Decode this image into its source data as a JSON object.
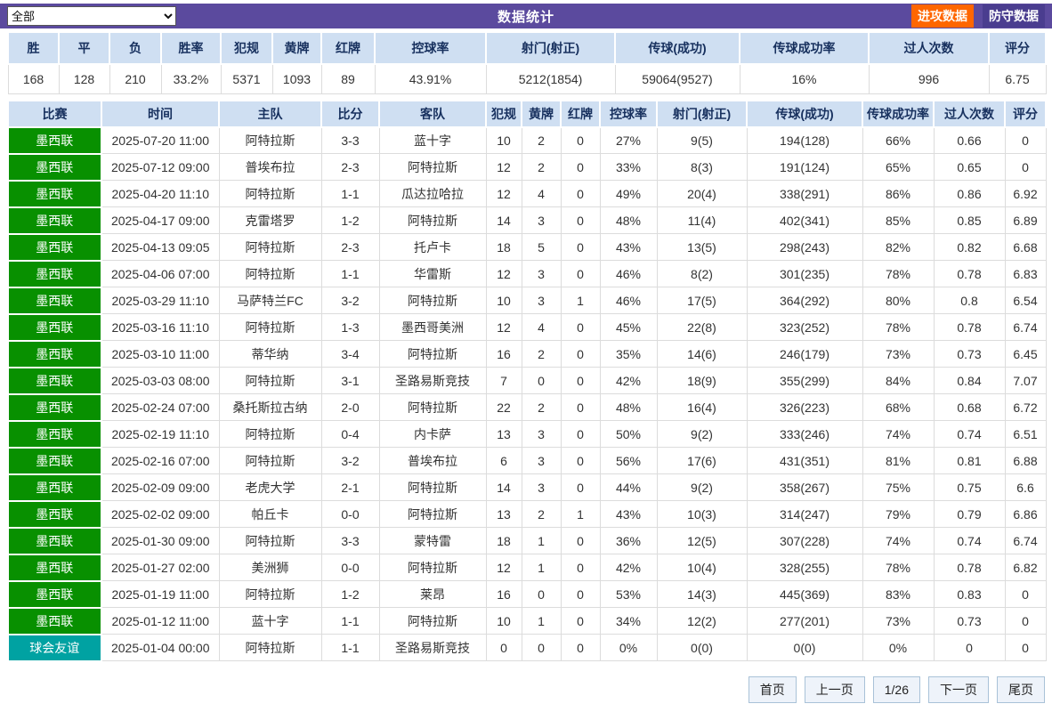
{
  "topbar": {
    "filter_value": "全部",
    "title": "数据统计",
    "attack_button": "进攻数据",
    "defense_button": "防守数据"
  },
  "summary": {
    "headers": [
      "胜",
      "平",
      "负",
      "胜率",
      "犯规",
      "黄牌",
      "红牌",
      "控球率",
      "射门(射正)",
      "传球(成功)",
      "传球成功率",
      "过人次数",
      "评分"
    ],
    "values": [
      "168",
      "128",
      "210",
      "33.2%",
      "5371",
      "1093",
      "89",
      "43.91%",
      "5212(1854)",
      "59064(9527)",
      "16%",
      "996",
      "6.75"
    ]
  },
  "table": {
    "headers": [
      "比赛",
      "时间",
      "主队",
      "比分",
      "客队",
      "犯规",
      "黄牌",
      "红牌",
      "控球率",
      "射门(射正)",
      "传球(成功)",
      "传球成功率",
      "过人次数",
      "评分"
    ],
    "rows": [
      {
        "league": "墨西联",
        "league_color": "#089000",
        "cells": [
          "2025-07-20 11:00",
          "阿特拉斯",
          "3-3",
          "蓝十字",
          "10",
          "2",
          "0",
          "27%",
          "9(5)",
          "194(128)",
          "66%",
          "0.66",
          "0"
        ]
      },
      {
        "league": "墨西联",
        "league_color": "#089000",
        "cells": [
          "2025-07-12 09:00",
          "普埃布拉",
          "2-3",
          "阿特拉斯",
          "12",
          "2",
          "0",
          "33%",
          "8(3)",
          "191(124)",
          "65%",
          "0.65",
          "0"
        ]
      },
      {
        "league": "墨西联",
        "league_color": "#089000",
        "cells": [
          "2025-04-20 11:10",
          "阿特拉斯",
          "1-1",
          "瓜达拉哈拉",
          "12",
          "4",
          "0",
          "49%",
          "20(4)",
          "338(291)",
          "86%",
          "0.86",
          "6.92"
        ]
      },
      {
        "league": "墨西联",
        "league_color": "#089000",
        "cells": [
          "2025-04-17 09:00",
          "克雷塔罗",
          "1-2",
          "阿特拉斯",
          "14",
          "3",
          "0",
          "48%",
          "11(4)",
          "402(341)",
          "85%",
          "0.85",
          "6.89"
        ]
      },
      {
        "league": "墨西联",
        "league_color": "#089000",
        "cells": [
          "2025-04-13 09:05",
          "阿特拉斯",
          "2-3",
          "托卢卡",
          "18",
          "5",
          "0",
          "43%",
          "13(5)",
          "298(243)",
          "82%",
          "0.82",
          "6.68"
        ]
      },
      {
        "league": "墨西联",
        "league_color": "#089000",
        "cells": [
          "2025-04-06 07:00",
          "阿特拉斯",
          "1-1",
          "华雷斯",
          "12",
          "3",
          "0",
          "46%",
          "8(2)",
          "301(235)",
          "78%",
          "0.78",
          "6.83"
        ]
      },
      {
        "league": "墨西联",
        "league_color": "#089000",
        "cells": [
          "2025-03-29 11:10",
          "马萨特兰FC",
          "3-2",
          "阿特拉斯",
          "10",
          "3",
          "1",
          "46%",
          "17(5)",
          "364(292)",
          "80%",
          "0.8",
          "6.54"
        ]
      },
      {
        "league": "墨西联",
        "league_color": "#089000",
        "cells": [
          "2025-03-16 11:10",
          "阿特拉斯",
          "1-3",
          "墨西哥美洲",
          "12",
          "4",
          "0",
          "45%",
          "22(8)",
          "323(252)",
          "78%",
          "0.78",
          "6.74"
        ]
      },
      {
        "league": "墨西联",
        "league_color": "#089000",
        "cells": [
          "2025-03-10 11:00",
          "蒂华纳",
          "3-4",
          "阿特拉斯",
          "16",
          "2",
          "0",
          "35%",
          "14(6)",
          "246(179)",
          "73%",
          "0.73",
          "6.45"
        ]
      },
      {
        "league": "墨西联",
        "league_color": "#089000",
        "cells": [
          "2025-03-03 08:00",
          "阿特拉斯",
          "3-1",
          "圣路易斯竞技",
          "7",
          "0",
          "0",
          "42%",
          "18(9)",
          "355(299)",
          "84%",
          "0.84",
          "7.07"
        ]
      },
      {
        "league": "墨西联",
        "league_color": "#089000",
        "cells": [
          "2025-02-24 07:00",
          "桑托斯拉古纳",
          "2-0",
          "阿特拉斯",
          "22",
          "2",
          "0",
          "48%",
          "16(4)",
          "326(223)",
          "68%",
          "0.68",
          "6.72"
        ]
      },
      {
        "league": "墨西联",
        "league_color": "#089000",
        "cells": [
          "2025-02-19 11:10",
          "阿特拉斯",
          "0-4",
          "内卡萨",
          "13",
          "3",
          "0",
          "50%",
          "9(2)",
          "333(246)",
          "74%",
          "0.74",
          "6.51"
        ]
      },
      {
        "league": "墨西联",
        "league_color": "#089000",
        "cells": [
          "2025-02-16 07:00",
          "阿特拉斯",
          "3-2",
          "普埃布拉",
          "6",
          "3",
          "0",
          "56%",
          "17(6)",
          "431(351)",
          "81%",
          "0.81",
          "6.88"
        ]
      },
      {
        "league": "墨西联",
        "league_color": "#089000",
        "cells": [
          "2025-02-09 09:00",
          "老虎大学",
          "2-1",
          "阿特拉斯",
          "14",
          "3",
          "0",
          "44%",
          "9(2)",
          "358(267)",
          "75%",
          "0.75",
          "6.6"
        ]
      },
      {
        "league": "墨西联",
        "league_color": "#089000",
        "cells": [
          "2025-02-02 09:00",
          "帕丘卡",
          "0-0",
          "阿特拉斯",
          "13",
          "2",
          "1",
          "43%",
          "10(3)",
          "314(247)",
          "79%",
          "0.79",
          "6.86"
        ]
      },
      {
        "league": "墨西联",
        "league_color": "#089000",
        "cells": [
          "2025-01-30 09:00",
          "阿特拉斯",
          "3-3",
          "蒙特雷",
          "18",
          "1",
          "0",
          "36%",
          "12(5)",
          "307(228)",
          "74%",
          "0.74",
          "6.74"
        ]
      },
      {
        "league": "墨西联",
        "league_color": "#089000",
        "cells": [
          "2025-01-27 02:00",
          "美洲狮",
          "0-0",
          "阿特拉斯",
          "12",
          "1",
          "0",
          "42%",
          "10(4)",
          "328(255)",
          "78%",
          "0.78",
          "6.82"
        ]
      },
      {
        "league": "墨西联",
        "league_color": "#089000",
        "cells": [
          "2025-01-19 11:00",
          "阿特拉斯",
          "1-2",
          "莱昂",
          "16",
          "0",
          "0",
          "53%",
          "14(3)",
          "445(369)",
          "83%",
          "0.83",
          "0"
        ]
      },
      {
        "league": "墨西联",
        "league_color": "#089000",
        "cells": [
          "2025-01-12 11:00",
          "蓝十字",
          "1-1",
          "阿特拉斯",
          "10",
          "1",
          "0",
          "34%",
          "12(2)",
          "277(201)",
          "73%",
          "0.73",
          "0"
        ]
      },
      {
        "league": "球会友谊",
        "league_color": "#00a2a2",
        "cells": [
          "2025-01-04 00:00",
          "阿特拉斯",
          "1-1",
          "圣路易斯竞技",
          "0",
          "0",
          "0",
          "0%",
          "0(0)",
          "0(0)",
          "0%",
          "0",
          "0"
        ]
      }
    ],
    "cell_names": [
      "match-time",
      "home-team",
      "score",
      "away-team",
      "fouls",
      "yellow-cards",
      "red-cards",
      "possession",
      "shots-on-target",
      "passes-successful",
      "pass-success-rate",
      "dribbles",
      "rating"
    ]
  },
  "pagination": {
    "first": "首页",
    "prev": "上一页",
    "page": "1/26",
    "next": "下一页",
    "last": "尾页"
  },
  "colors": {
    "topbar_purple": "#5b4a9e",
    "defense_button_purple": "#4a3d8f",
    "attack_button_orange": "#ff6600",
    "league_green": "#089000",
    "friendly_teal": "#00a2a2",
    "table_header_bg": "#cfdff2",
    "table_header_text": "#17305e"
  }
}
